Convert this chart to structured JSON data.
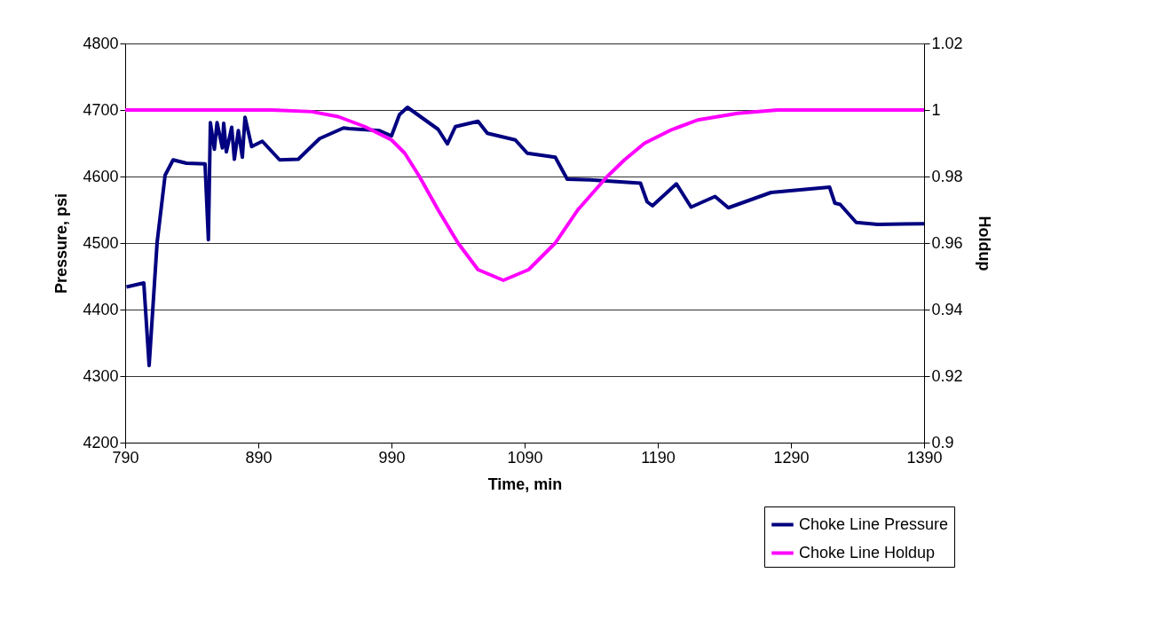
{
  "chart_data": {
    "type": "line",
    "xlabel": "Time, min",
    "ylabel": "Pressure, psi",
    "y2label": "Holdup",
    "xlim": [
      790,
      1390
    ],
    "xticks": [
      790,
      890,
      990,
      1090,
      1190,
      1290,
      1390
    ],
    "ylim": [
      4200,
      4800
    ],
    "yticks": [
      4200,
      4300,
      4400,
      4500,
      4600,
      4700,
      4800
    ],
    "y2lim": [
      0.9,
      1.02
    ],
    "y2ticks": [
      0.9,
      0.92,
      0.94,
      0.96,
      0.98,
      1,
      1.02
    ],
    "grid": "y",
    "legend": "bottom right",
    "marker": "none",
    "line_style": "solid",
    "series": [
      {
        "name": "Choke Line Pressure",
        "color": "#000080",
        "x": [
          791,
          804,
          808,
          814,
          820,
          826,
          836,
          850,
          852.5,
          854,
          857,
          859,
          863,
          864,
          866,
          870,
          872,
          875,
          878,
          880,
          885,
          893,
          906,
          920,
          936,
          954,
          958,
          981,
          990,
          996,
          1002,
          1025,
          1032,
          1038,
          1055,
          1062,
          1083,
          1092,
          1113,
          1122,
          1139,
          1177,
          1182,
          1186,
          1204,
          1215,
          1233,
          1243,
          1275,
          1319,
          1323,
          1327,
          1339,
          1355,
          1390
        ],
        "values": [
          4434,
          4440,
          4316,
          4501,
          4602,
          4625,
          4620,
          4619,
          4505,
          4681,
          4641,
          4681,
          4643,
          4680,
          4637,
          4674,
          4626,
          4669,
          4629,
          4689,
          4645,
          4653,
          4625,
          4626,
          4657,
          4673,
          4672,
          4669,
          4661,
          4693,
          4704,
          4671,
          4649,
          4675,
          4683,
          4665,
          4655,
          4635,
          4629,
          4596,
          4595,
          4590,
          4562,
          4556,
          4589,
          4554,
          4570,
          4553,
          4576,
          4584,
          4560,
          4558,
          4531,
          4528,
          4529
        ]
      },
      {
        "name": "Choke Line Holdup",
        "color": "#ff00ff",
        "axis": "y2",
        "x": [
          790,
          900,
          930,
          950,
          970,
          990,
          1000,
          1011,
          1025,
          1040,
          1055,
          1074,
          1093,
          1113,
          1130,
          1152,
          1165,
          1180,
          1200,
          1220,
          1250,
          1280,
          1390
        ],
        "values": [
          1,
          1,
          0.9995,
          0.998,
          0.995,
          0.991,
          0.987,
          0.98,
          0.97,
          0.96,
          0.952,
          0.9488,
          0.952,
          0.96,
          0.97,
          0.98,
          0.985,
          0.99,
          0.994,
          0.997,
          0.999,
          1,
          1
        ]
      }
    ]
  }
}
